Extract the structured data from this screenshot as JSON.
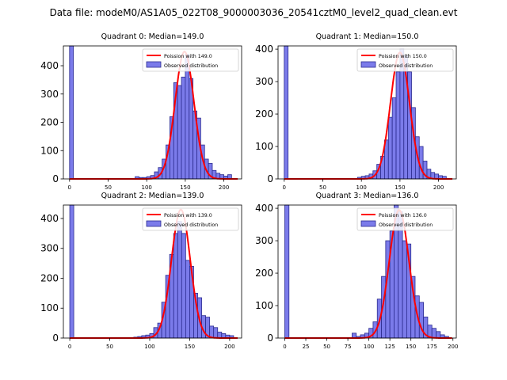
{
  "suptitle": "Data file: modeM0/AS1A05_022T08_9000003036_20541cztM0_level2_quad_clean.evt",
  "colors": {
    "bar_fill": "#7b7bea",
    "bar_edge": "#2b2b8f",
    "poisson_line": "#ff0000"
  },
  "chart_data": [
    {
      "type": "bar",
      "title": "Quadrant 0: Median=149.0",
      "legend": {
        "poisson": "Poission with 149.0",
        "observed": "Observed distribution",
        "position": "top-right"
      },
      "xlim": [
        -8,
        223
      ],
      "ylim": [
        0,
        470
      ],
      "xticks": [
        0,
        50,
        100,
        150,
        200
      ],
      "xtick_labels": [
        "0",
        "50",
        "100",
        "150",
        "200"
      ],
      "yticks": [
        0,
        100,
        200,
        300,
        400
      ],
      "ytick_labels": [
        "0",
        "100",
        "200",
        "300",
        "400"
      ],
      "bin_width": 5,
      "bins_x": [
        0,
        85,
        90,
        95,
        100,
        105,
        110,
        115,
        120,
        125,
        130,
        135,
        140,
        145,
        150,
        155,
        160,
        165,
        170,
        175,
        180,
        185,
        190,
        195,
        200,
        205
      ],
      "bins_y": [
        470,
        8,
        5,
        5,
        8,
        12,
        25,
        40,
        70,
        120,
        220,
        340,
        330,
        360,
        440,
        355,
        240,
        215,
        120,
        70,
        55,
        30,
        20,
        15,
        10,
        15
      ],
      "poisson_mean": 149,
      "poisson_peak": 450
    },
    {
      "type": "bar",
      "title": "Quadrant 1: Median=150.0",
      "legend": {
        "poisson": "Poission with 150.0",
        "observed": "Observed distribution",
        "position": "top-right"
      },
      "xlim": [
        -8,
        223
      ],
      "ylim": [
        0,
        410
      ],
      "xticks": [
        0,
        50,
        100,
        150,
        200
      ],
      "xtick_labels": [
        "0",
        "50",
        "100",
        "150",
        "200"
      ],
      "yticks": [
        0,
        100,
        200,
        300,
        400
      ],
      "ytick_labels": [
        "0",
        "100",
        "200",
        "300",
        "400"
      ],
      "bin_width": 5,
      "bins_x": [
        0,
        95,
        100,
        105,
        110,
        115,
        120,
        125,
        130,
        135,
        140,
        145,
        150,
        155,
        160,
        165,
        170,
        175,
        180,
        185,
        190,
        195,
        200,
        205
      ],
      "bins_y": [
        410,
        5,
        8,
        10,
        15,
        25,
        45,
        70,
        120,
        190,
        250,
        330,
        400,
        380,
        330,
        220,
        130,
        100,
        55,
        30,
        20,
        15,
        10,
        8
      ],
      "poisson_mean": 150,
      "poisson_peak": 390
    },
    {
      "type": "bar",
      "title": "Quadrant 2: Median=139.0",
      "legend": {
        "poisson": "Poission with 139.0",
        "observed": "Observed distribution",
        "position": "top-right"
      },
      "xlim": [
        -8,
        215
      ],
      "ylim": [
        0,
        445
      ],
      "xticks": [
        0,
        50,
        100,
        150,
        200
      ],
      "xtick_labels": [
        "0",
        "50",
        "100",
        "150",
        "200"
      ],
      "yticks": [
        0,
        100,
        200,
        300,
        400
      ],
      "ytick_labels": [
        "0",
        "100",
        "200",
        "300",
        "400"
      ],
      "bin_width": 5,
      "bins_x": [
        0,
        80,
        85,
        90,
        95,
        100,
        105,
        110,
        115,
        120,
        125,
        130,
        135,
        140,
        145,
        150,
        155,
        160,
        165,
        170,
        175,
        180,
        185,
        190,
        195,
        200
      ],
      "bins_y": [
        445,
        3,
        5,
        8,
        10,
        15,
        35,
        50,
        120,
        210,
        280,
        350,
        390,
        350,
        260,
        240,
        150,
        135,
        75,
        70,
        40,
        35,
        20,
        15,
        10,
        8
      ],
      "poisson_mean": 139,
      "poisson_peak": 430
    },
    {
      "type": "bar",
      "title": "Quadrant 3: Median=136.0",
      "legend": {
        "poisson": "Poission with 136.0",
        "observed": "Observed distribution",
        "position": "top-right"
      },
      "xlim": [
        -8,
        204
      ],
      "ylim": [
        0,
        410
      ],
      "xticks": [
        0,
        25,
        50,
        75,
        100,
        125,
        150,
        175,
        200
      ],
      "xtick_labels": [
        "0",
        "25",
        "50",
        "75",
        "100",
        "125",
        "150",
        "175",
        "200"
      ],
      "yticks": [
        0,
        100,
        200,
        300,
        400
      ],
      "ytick_labels": [
        "0",
        "100",
        "200",
        "300",
        "400"
      ],
      "bin_width": 5,
      "bins_x": [
        0,
        80,
        85,
        90,
        95,
        100,
        105,
        110,
        115,
        120,
        125,
        130,
        135,
        140,
        145,
        150,
        155,
        160,
        165,
        170,
        175,
        180,
        185,
        190
      ],
      "bins_y": [
        410,
        15,
        5,
        10,
        15,
        30,
        50,
        120,
        190,
        300,
        330,
        410,
        390,
        300,
        290,
        190,
        130,
        110,
        65,
        40,
        30,
        20,
        10,
        5
      ],
      "poisson_mean": 136,
      "poisson_peak": 395
    }
  ]
}
